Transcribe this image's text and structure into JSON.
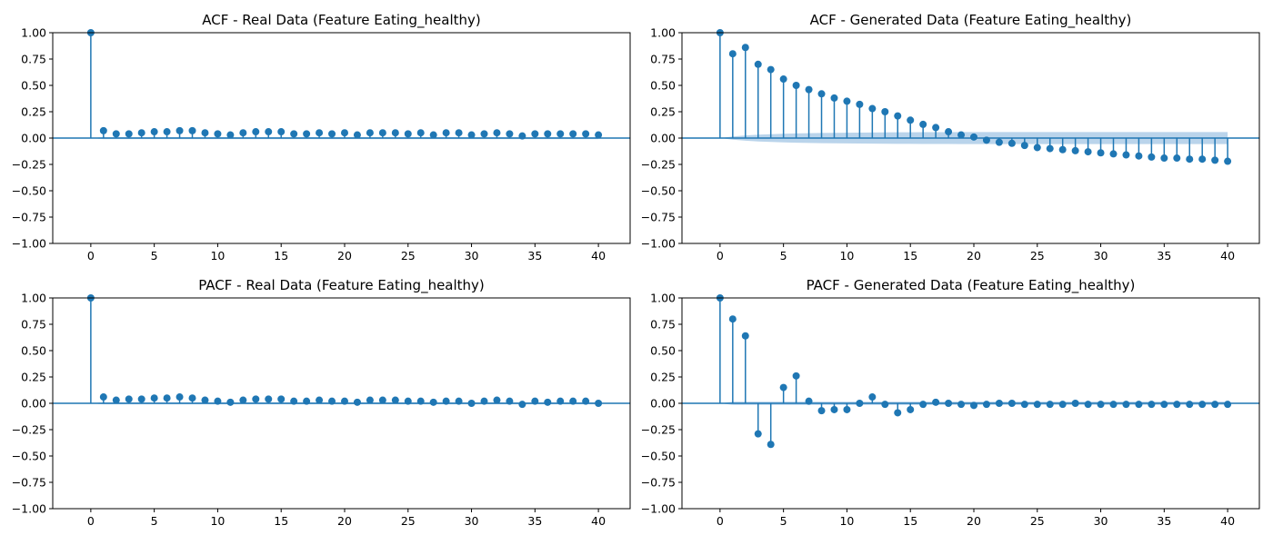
{
  "colors": {
    "stem": "#1f77b4",
    "band": "#aecde8"
  },
  "chart_data": [
    {
      "type": "stem",
      "title": "ACF - Real Data (Feature Eating_healthy)",
      "xlim": [
        -3,
        42.5
      ],
      "ylim": [
        -1.0,
        1.0
      ],
      "xticks": [
        0,
        5,
        10,
        15,
        20,
        25,
        30,
        35,
        40
      ],
      "xtick_labels": [
        "0",
        "5",
        "10",
        "15",
        "20",
        "25",
        "30",
        "35",
        "40"
      ],
      "yticks": [
        1.0,
        0.75,
        0.5,
        0.25,
        0.0,
        -0.25,
        -0.5,
        -0.75,
        -1.0
      ],
      "ytick_labels": [
        "1.00",
        "0.75",
        "0.50",
        "0.25",
        "0.00",
        "−0.25",
        "−0.50",
        "−0.75",
        "−1.00"
      ],
      "lags": [
        0,
        1,
        2,
        3,
        4,
        5,
        6,
        7,
        8,
        9,
        10,
        11,
        12,
        13,
        14,
        15,
        16,
        17,
        18,
        19,
        20,
        21,
        22,
        23,
        24,
        25,
        26,
        27,
        28,
        29,
        30,
        31,
        32,
        33,
        34,
        35,
        36,
        37,
        38,
        39,
        40
      ],
      "values": [
        1.0,
        0.07,
        0.04,
        0.04,
        0.05,
        0.06,
        0.06,
        0.07,
        0.07,
        0.05,
        0.04,
        0.03,
        0.05,
        0.06,
        0.06,
        0.06,
        0.04,
        0.04,
        0.05,
        0.04,
        0.05,
        0.03,
        0.05,
        0.05,
        0.05,
        0.04,
        0.05,
        0.03,
        0.05,
        0.05,
        0.03,
        0.04,
        0.05,
        0.04,
        0.02,
        0.04,
        0.04,
        0.04,
        0.04,
        0.04,
        0.03
      ],
      "conf_band": [
        0,
        0.01,
        0.01,
        0.01,
        0.01,
        0.01,
        0.01,
        0.01,
        0.01,
        0.01,
        0.01,
        0.01,
        0.01,
        0.01,
        0.01,
        0.01,
        0.01,
        0.01,
        0.01,
        0.01,
        0.01,
        0.01,
        0.01,
        0.01,
        0.01,
        0.01,
        0.01,
        0.01,
        0.01,
        0.01,
        0.01,
        0.01,
        0.01,
        0.01,
        0.01,
        0.01,
        0.01,
        0.01,
        0.01,
        0.01,
        0.01
      ]
    },
    {
      "type": "stem",
      "title": "ACF - Generated Data (Feature Eating_healthy)",
      "xlim": [
        -3,
        42.5
      ],
      "ylim": [
        -1.0,
        1.0
      ],
      "xticks": [
        0,
        5,
        10,
        15,
        20,
        25,
        30,
        35,
        40
      ],
      "xtick_labels": [
        "0",
        "5",
        "10",
        "15",
        "20",
        "25",
        "30",
        "35",
        "40"
      ],
      "yticks": [
        1.0,
        0.75,
        0.5,
        0.25,
        0.0,
        -0.25,
        -0.5,
        -0.75,
        -1.0
      ],
      "ytick_labels": [
        "1.00",
        "0.75",
        "0.50",
        "0.25",
        "0.00",
        "−0.25",
        "−0.50",
        "−0.75",
        "−1.00"
      ],
      "lags": [
        0,
        1,
        2,
        3,
        4,
        5,
        6,
        7,
        8,
        9,
        10,
        11,
        12,
        13,
        14,
        15,
        16,
        17,
        18,
        19,
        20,
        21,
        22,
        23,
        24,
        25,
        26,
        27,
        28,
        29,
        30,
        31,
        32,
        33,
        34,
        35,
        36,
        37,
        38,
        39,
        40
      ],
      "values": [
        1.0,
        0.8,
        0.86,
        0.7,
        0.65,
        0.56,
        0.5,
        0.46,
        0.42,
        0.38,
        0.35,
        0.32,
        0.28,
        0.25,
        0.21,
        0.17,
        0.13,
        0.1,
        0.06,
        0.03,
        0.01,
        -0.02,
        -0.04,
        -0.05,
        -0.07,
        -0.09,
        -0.1,
        -0.11,
        -0.12,
        -0.13,
        -0.14,
        -0.15,
        -0.16,
        -0.17,
        -0.18,
        -0.19,
        -0.19,
        -0.2,
        -0.2,
        -0.21,
        -0.22
      ],
      "conf_band": [
        0,
        0.015,
        0.025,
        0.032,
        0.037,
        0.041,
        0.044,
        0.046,
        0.048,
        0.05,
        0.051,
        0.052,
        0.053,
        0.054,
        0.055,
        0.055,
        0.056,
        0.056,
        0.056,
        0.057,
        0.057,
        0.057,
        0.057,
        0.057,
        0.057,
        0.057,
        0.057,
        0.057,
        0.057,
        0.057,
        0.057,
        0.057,
        0.057,
        0.057,
        0.057,
        0.057,
        0.057,
        0.057,
        0.057,
        0.057,
        0.057
      ]
    },
    {
      "type": "stem",
      "title": "PACF - Real Data (Feature Eating_healthy)",
      "xlim": [
        -3,
        42.5
      ],
      "ylim": [
        -1.0,
        1.0
      ],
      "xticks": [
        0,
        5,
        10,
        15,
        20,
        25,
        30,
        35,
        40
      ],
      "xtick_labels": [
        "0",
        "5",
        "10",
        "15",
        "20",
        "25",
        "30",
        "35",
        "40"
      ],
      "yticks": [
        1.0,
        0.75,
        0.5,
        0.25,
        0.0,
        -0.25,
        -0.5,
        -0.75,
        -1.0
      ],
      "ytick_labels": [
        "1.00",
        "0.75",
        "0.50",
        "0.25",
        "0.00",
        "−0.25",
        "−0.50",
        "−0.75",
        "−1.00"
      ],
      "lags": [
        0,
        1,
        2,
        3,
        4,
        5,
        6,
        7,
        8,
        9,
        10,
        11,
        12,
        13,
        14,
        15,
        16,
        17,
        18,
        19,
        20,
        21,
        22,
        23,
        24,
        25,
        26,
        27,
        28,
        29,
        30,
        31,
        32,
        33,
        34,
        35,
        36,
        37,
        38,
        39,
        40
      ],
      "values": [
        1.0,
        0.06,
        0.03,
        0.04,
        0.04,
        0.05,
        0.05,
        0.06,
        0.05,
        0.03,
        0.02,
        0.01,
        0.03,
        0.04,
        0.04,
        0.04,
        0.02,
        0.02,
        0.03,
        0.02,
        0.02,
        0.01,
        0.03,
        0.03,
        0.03,
        0.02,
        0.02,
        0.01,
        0.02,
        0.02,
        0.0,
        0.02,
        0.03,
        0.02,
        -0.01,
        0.02,
        0.01,
        0.02,
        0.02,
        0.02,
        0.0
      ],
      "conf_band": [
        0,
        0.01,
        0.01,
        0.01,
        0.01,
        0.01,
        0.01,
        0.01,
        0.01,
        0.01,
        0.01,
        0.01,
        0.01,
        0.01,
        0.01,
        0.01,
        0.01,
        0.01,
        0.01,
        0.01,
        0.01,
        0.01,
        0.01,
        0.01,
        0.01,
        0.01,
        0.01,
        0.01,
        0.01,
        0.01,
        0.01,
        0.01,
        0.01,
        0.01,
        0.01,
        0.01,
        0.01,
        0.01,
        0.01,
        0.01,
        0.01
      ]
    },
    {
      "type": "stem",
      "title": "PACF - Generated Data (Feature Eating_healthy)",
      "xlim": [
        -3,
        42.5
      ],
      "ylim": [
        -1.0,
        1.0
      ],
      "xticks": [
        0,
        5,
        10,
        15,
        20,
        25,
        30,
        35,
        40
      ],
      "xtick_labels": [
        "0",
        "5",
        "10",
        "15",
        "20",
        "25",
        "30",
        "35",
        "40"
      ],
      "yticks": [
        1.0,
        0.75,
        0.5,
        0.25,
        0.0,
        -0.25,
        -0.5,
        -0.75,
        -1.0
      ],
      "ytick_labels": [
        "1.00",
        "0.75",
        "0.50",
        "0.25",
        "0.00",
        "−0.25",
        "−0.50",
        "−0.75",
        "−1.00"
      ],
      "lags": [
        0,
        1,
        2,
        3,
        4,
        5,
        6,
        7,
        8,
        9,
        10,
        11,
        12,
        13,
        14,
        15,
        16,
        17,
        18,
        19,
        20,
        21,
        22,
        23,
        24,
        25,
        26,
        27,
        28,
        29,
        30,
        31,
        32,
        33,
        34,
        35,
        36,
        37,
        38,
        39,
        40
      ],
      "values": [
        1.0,
        0.8,
        0.64,
        -0.29,
        -0.39,
        0.15,
        0.26,
        0.02,
        -0.07,
        -0.06,
        -0.06,
        0.0,
        0.06,
        -0.01,
        -0.09,
        -0.06,
        -0.01,
        0.01,
        0.0,
        -0.01,
        -0.02,
        -0.01,
        0.0,
        0.0,
        -0.01,
        -0.01,
        -0.01,
        -0.01,
        0.0,
        -0.01,
        -0.01,
        -0.01,
        -0.01,
        -0.01,
        -0.01,
        -0.01,
        -0.01,
        -0.01,
        -0.01,
        -0.01,
        -0.01
      ],
      "conf_band": [
        0,
        0.015,
        0.015,
        0.015,
        0.015,
        0.015,
        0.015,
        0.015,
        0.015,
        0.015,
        0.015,
        0.015,
        0.015,
        0.015,
        0.015,
        0.015,
        0.015,
        0.015,
        0.015,
        0.015,
        0.015,
        0.015,
        0.015,
        0.015,
        0.015,
        0.015,
        0.015,
        0.015,
        0.015,
        0.015,
        0.015,
        0.015,
        0.015,
        0.015,
        0.015,
        0.015,
        0.015,
        0.015,
        0.015,
        0.015,
        0.015
      ]
    }
  ]
}
